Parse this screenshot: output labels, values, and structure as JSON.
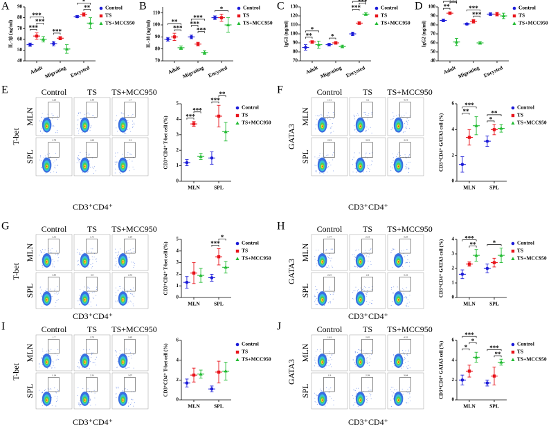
{
  "chart_data": [
    {
      "panel": "A",
      "type": "dot",
      "ylabel": "IL-1β (ng/ml)",
      "categories": [
        "Adult",
        "Migrating",
        "Encysted"
      ],
      "ylim": [
        40,
        90
      ],
      "yticks": [
        40,
        50,
        60,
        70,
        80,
        90
      ],
      "series": [
        {
          "name": "Control",
          "color": "#1c1cd8",
          "marker": "circle",
          "values": [
            55,
            56,
            81
          ],
          "errors": [
            1.5,
            2,
            1
          ]
        },
        {
          "name": "TS",
          "color": "#e8141b",
          "marker": "square",
          "values": [
            63,
            61,
            83
          ],
          "errors": [
            3,
            1.5,
            1.5
          ]
        },
        {
          "name": "TS+MCC950",
          "color": "#22bb33",
          "marker": "triangle",
          "values": [
            60,
            51,
            75
          ],
          "errors": [
            2.5,
            4,
            5
          ]
        }
      ],
      "annotations": [
        {
          "text": "***",
          "category": 0,
          "groups": [
            0,
            1
          ]
        },
        {
          "text": "***",
          "category": 0,
          "groups": [
            1,
            2
          ]
        },
        {
          "text": "***",
          "category": 0,
          "groups": [
            0,
            2
          ]
        },
        {
          "text": "***",
          "category": 1,
          "groups": [
            0,
            1
          ]
        },
        {
          "text": "**",
          "category": 2,
          "groups": [
            1,
            2
          ]
        },
        {
          "text": "*",
          "category": 2,
          "groups": [
            0,
            2
          ]
        }
      ]
    },
    {
      "panel": "B",
      "type": "dot",
      "ylabel": "IL-18 (ng/ml)",
      "categories": [
        "Adult",
        "Migrating",
        "Encysted"
      ],
      "ylim": [
        70,
        115
      ],
      "yticks": [
        70,
        80,
        90,
        100,
        110
      ],
      "series": [
        {
          "name": "Control",
          "color": "#1c1cd8",
          "marker": "circle",
          "values": [
            88,
            90,
            106
          ],
          "errors": [
            1.5,
            1.5,
            1.5
          ]
        },
        {
          "name": "TS",
          "color": "#e8141b",
          "marker": "square",
          "values": [
            90,
            84,
            106
          ],
          "errors": [
            3,
            1.5,
            3
          ]
        },
        {
          "name": "TS+MCC950",
          "color": "#22bb33",
          "marker": "triangle",
          "values": [
            81,
            77,
            100
          ],
          "errors": [
            1.5,
            1.5,
            6
          ]
        }
      ],
      "annotations": [
        {
          "text": "***",
          "category": 0,
          "groups": [
            1,
            2
          ]
        },
        {
          "text": "**",
          "category": 0,
          "groups": [
            0,
            2
          ]
        },
        {
          "text": "***",
          "category": 1,
          "groups": [
            1,
            2
          ]
        },
        {
          "text": "***",
          "category": 1,
          "groups": [
            0,
            1
          ]
        },
        {
          "text": "***",
          "category": 1,
          "groups": [
            0,
            2
          ]
        },
        {
          "text": "*",
          "category": 2,
          "groups": [
            0,
            2
          ]
        }
      ]
    },
    {
      "panel": "C",
      "type": "dot",
      "ylabel": "IgG1 (ng/ml)",
      "categories": [
        "Adult",
        "Migrating",
        "Encysted"
      ],
      "ylim": [
        70,
        130
      ],
      "yticks": [
        70,
        80,
        90,
        100,
        110,
        120,
        130
      ],
      "series": [
        {
          "name": "Control",
          "color": "#1c1cd8",
          "marker": "circle",
          "values": [
            85,
            88,
            100
          ],
          "errors": [
            3,
            1.5,
            2
          ]
        },
        {
          "name": "TS",
          "color": "#e8141b",
          "marker": "square",
          "values": [
            91,
            90,
            112
          ],
          "errors": [
            1.5,
            1.5,
            1.5
          ]
        },
        {
          "name": "TS+MCC950",
          "color": "#22bb33",
          "marker": "triangle",
          "values": [
            88,
            86,
            122
          ],
          "errors": [
            4,
            1.5,
            1.5
          ]
        }
      ],
      "annotations": [
        {
          "text": "**",
          "category": 0,
          "groups": [
            0,
            1
          ]
        },
        {
          "text": "*",
          "category": 0,
          "groups": [
            0,
            2
          ]
        },
        {
          "text": "*",
          "category": 1,
          "groups": [
            0,
            1
          ]
        },
        {
          "text": "***",
          "category": 2,
          "groups": [
            0,
            1
          ]
        },
        {
          "text": "***",
          "category": 2,
          "groups": [
            1,
            2
          ]
        },
        {
          "text": "***",
          "category": 2,
          "groups": [
            0,
            2
          ]
        }
      ]
    },
    {
      "panel": "D",
      "type": "dot",
      "ylabel": "IgG2 (ng/ml)",
      "categories": [
        "Adult",
        "Migrating",
        "Encysted"
      ],
      "ylim": [
        40,
        100
      ],
      "yticks": [
        40,
        50,
        60,
        70,
        80,
        90,
        100
      ],
      "series": [
        {
          "name": "Control",
          "color": "#1c1cd8",
          "marker": "circle",
          "values": [
            85,
            81,
            92
          ],
          "errors": [
            1.5,
            1,
            1.5
          ]
        },
        {
          "name": "TS",
          "color": "#e8141b",
          "marker": "square",
          "values": [
            93,
            84,
            92
          ],
          "errors": [
            1.5,
            2,
            2
          ]
        },
        {
          "name": "TS+MCC950",
          "color": "#22bb33",
          "marker": "triangle",
          "values": [
            61,
            60,
            90
          ],
          "errors": [
            4,
            1.5,
            3
          ]
        }
      ],
      "annotations": [
        {
          "text": "**",
          "category": 0,
          "groups": [
            0,
            1
          ]
        },
        {
          "text": "***",
          "category": 0,
          "groups": [
            1,
            2
          ]
        },
        {
          "text": "***",
          "category": 0,
          "groups": [
            0,
            2
          ]
        },
        {
          "text": "***",
          "category": 1,
          "groups": [
            1,
            2
          ]
        },
        {
          "text": "***",
          "category": 1,
          "groups": [
            0,
            2
          ]
        }
      ]
    },
    {
      "panel": "E",
      "type": "dot",
      "ylabel": "CD3⁺CD4⁺ T-bet cell (%)",
      "categories": [
        "MLN",
        "SPL"
      ],
      "ylim": [
        0,
        5
      ],
      "yticks": [
        0,
        1,
        2,
        3,
        4,
        5
      ],
      "series": [
        {
          "name": "Control",
          "color": "#1c1cd8",
          "marker": "circle",
          "values": [
            1.2,
            1.5
          ],
          "errors": [
            0.2,
            0.4
          ]
        },
        {
          "name": "TS",
          "color": "#e8141b",
          "marker": "square",
          "values": [
            3.7,
            4.2
          ],
          "errors": [
            0.15,
            0.7
          ]
        },
        {
          "name": "TS+MCC950",
          "color": "#22bb33",
          "marker": "triangle",
          "values": [
            1.6,
            3.2
          ],
          "errors": [
            0.2,
            0.6
          ]
        }
      ],
      "annotations": [
        {
          "text": "***",
          "category": 0,
          "groups": [
            0,
            1
          ]
        },
        {
          "text": "***",
          "category": 0,
          "groups": [
            1,
            2
          ]
        },
        {
          "text": "***",
          "category": 1,
          "groups": [
            0,
            1
          ]
        },
        {
          "text": "**",
          "category": 1,
          "groups": [
            1,
            2
          ]
        }
      ],
      "flow": {
        "columns": [
          "Control",
          "TS",
          "TS+MCC950"
        ],
        "rows": [
          "MLN",
          "SPL"
        ],
        "ylabel": "T-bet",
        "xlabel": "CD3⁺CD4⁺",
        "gates": [
          [
            1.29,
            1.49,
            1.7
          ],
          [
            1.78,
            4.64,
            3.3
          ]
        ]
      }
    },
    {
      "panel": "F",
      "type": "dot",
      "ylabel": "CD3⁺CD4⁺ GATA3 cell (%)",
      "categories": [
        "MLN",
        "SPL"
      ],
      "ylim": [
        0,
        6
      ],
      "yticks": [
        0,
        2,
        4,
        6
      ],
      "series": [
        {
          "name": "Control",
          "color": "#1c1cd8",
          "marker": "circle",
          "values": [
            1.3,
            3.1
          ],
          "errors": [
            0.6,
            0.4
          ]
        },
        {
          "name": "TS",
          "color": "#e8141b",
          "marker": "square",
          "values": [
            3.4,
            4.0
          ],
          "errors": [
            0.6,
            0.4
          ]
        },
        {
          "name": "TS+MCC950",
          "color": "#22bb33",
          "marker": "triangle",
          "values": [
            4.3,
            4.1
          ],
          "errors": [
            0.7,
            0.3
          ]
        }
      ],
      "annotations": [
        {
          "text": "**",
          "category": 0,
          "groups": [
            0,
            1
          ]
        },
        {
          "text": "***",
          "category": 0,
          "groups": [
            0,
            2
          ]
        },
        {
          "text": "*",
          "category": 1,
          "groups": [
            0,
            1
          ]
        },
        {
          "text": "**",
          "category": 1,
          "groups": [
            0,
            2
          ]
        }
      ],
      "flow": {
        "columns": [
          "Control",
          "TS",
          "TS+MCC950"
        ],
        "rows": [
          "MLN",
          "SPL"
        ],
        "ylabel": "GATA3",
        "xlabel": "CD3⁺CD4⁺",
        "gates": [
          [
            1.51,
            3.1,
            4.44
          ],
          [
            2.83,
            3.83,
            4.23
          ]
        ]
      }
    },
    {
      "panel": "G",
      "type": "dot",
      "ylabel": "CD3⁺CD4⁺ T-bet cell (%)",
      "categories": [
        "MLN",
        "SPL"
      ],
      "ylim": [
        0,
        5
      ],
      "yticks": [
        0,
        1,
        2,
        3,
        4,
        5
      ],
      "series": [
        {
          "name": "Control",
          "color": "#1c1cd8",
          "marker": "circle",
          "values": [
            1.3,
            1.7
          ],
          "errors": [
            0.5,
            0.3
          ]
        },
        {
          "name": "TS",
          "color": "#e8141b",
          "marker": "square",
          "values": [
            2.1,
            3.5
          ],
          "errors": [
            0.9,
            0.7
          ]
        },
        {
          "name": "TS+MCC950",
          "color": "#22bb33",
          "marker": "triangle",
          "values": [
            1.9,
            2.6
          ],
          "errors": [
            0.6,
            0.5
          ]
        }
      ],
      "annotations": [
        {
          "text": "***",
          "category": 1,
          "groups": [
            0,
            1
          ]
        },
        {
          "text": "*",
          "category": 1,
          "groups": [
            1,
            2
          ]
        }
      ],
      "flow": {
        "columns": [
          "Control",
          "TS",
          "TS+MCC950"
        ],
        "rows": [
          "MLN",
          "SPL"
        ],
        "ylabel": "T-bet",
        "xlabel": "CD3⁺CD4⁺",
        "gates": [
          [
            1.31,
            1.71,
            1.64
          ],
          [
            1.85,
            3.9,
            2.53
          ]
        ]
      }
    },
    {
      "panel": "H",
      "type": "dot",
      "ylabel": "CD3⁺CD4⁺ GATA3 cell (%)",
      "categories": [
        "MLN",
        "SPL"
      ],
      "ylim": [
        0,
        4
      ],
      "yticks": [
        0,
        1,
        2,
        3,
        4
      ],
      "series": [
        {
          "name": "Control",
          "color": "#1c1cd8",
          "marker": "circle",
          "values": [
            1.6,
            2.0
          ],
          "errors": [
            0.3,
            0.3
          ]
        },
        {
          "name": "TS",
          "color": "#e8141b",
          "marker": "square",
          "values": [
            2.3,
            2.4
          ],
          "errors": [
            0.15,
            0.3
          ]
        },
        {
          "name": "TS+MCC950",
          "color": "#22bb33",
          "marker": "triangle",
          "values": [
            2.9,
            2.9
          ],
          "errors": [
            0.4,
            0.5
          ]
        }
      ],
      "annotations": [
        {
          "text": "**",
          "category": 0,
          "groups": [
            1,
            2
          ]
        },
        {
          "text": "***",
          "category": 0,
          "groups": [
            0,
            2
          ]
        },
        {
          "text": "*",
          "category": 1,
          "groups": [
            0,
            2
          ]
        }
      ],
      "flow": {
        "columns": [
          "Control",
          "TS",
          "TS+MCC950"
        ],
        "rows": [
          "MLN",
          "SPL"
        ],
        "ylabel": "GATA3",
        "xlabel": "CD3⁺CD4⁺",
        "gates": [
          [
            1.77,
            2.33,
            3.29
          ],
          [
            2.25,
            2.2,
            3.16
          ]
        ]
      }
    },
    {
      "panel": "I",
      "type": "dot",
      "ylabel": "CD3⁺CD4⁺ T-bet cell (%)",
      "categories": [
        "MLN",
        "SPL"
      ],
      "ylim": [
        0,
        6
      ],
      "yticks": [
        0,
        2,
        4,
        6
      ],
      "series": [
        {
          "name": "Control",
          "color": "#1c1cd8",
          "marker": "circle",
          "values": [
            1.7,
            1.1
          ],
          "errors": [
            0.4,
            0.3
          ]
        },
        {
          "name": "TS",
          "color": "#e8141b",
          "marker": "square",
          "values": [
            2.5,
            2.8
          ],
          "errors": [
            0.7,
            1.1
          ]
        },
        {
          "name": "TS+MCC950",
          "color": "#22bb33",
          "marker": "triangle",
          "values": [
            2.6,
            2.9
          ],
          "errors": [
            0.4,
            0.9
          ]
        }
      ],
      "annotations": [],
      "flow": {
        "columns": [
          "Control",
          "TS",
          "TS+MCC950"
        ],
        "rows": [
          "MLN",
          "SPL"
        ],
        "ylabel": "T-bet",
        "xlabel": "CD3⁺CD4⁺",
        "gates": [
          [
            1.7,
            2.73,
            2.65
          ],
          [
            1.14,
            2.31,
            3.07
          ]
        ]
      }
    },
    {
      "panel": "J",
      "type": "dot",
      "ylabel": "CD3⁺CD4⁺ GATA3 cell (%)",
      "categories": [
        "MLN",
        "SPL"
      ],
      "ylim": [
        0,
        6
      ],
      "yticks": [
        0,
        2,
        4,
        6
      ],
      "series": [
        {
          "name": "Control",
          "color": "#1c1cd8",
          "marker": "circle",
          "values": [
            2.0,
            1.7
          ],
          "errors": [
            0.5,
            0.3
          ]
        },
        {
          "name": "TS",
          "color": "#e8141b",
          "marker": "square",
          "values": [
            2.9,
            2.4
          ],
          "errors": [
            0.6,
            0.9
          ]
        },
        {
          "name": "TS+MCC950",
          "color": "#22bb33",
          "marker": "triangle",
          "values": [
            4.3,
            3.8
          ],
          "errors": [
            0.5,
            0.3
          ]
        }
      ],
      "annotations": [
        {
          "text": "*",
          "category": 0,
          "groups": [
            0,
            1
          ]
        },
        {
          "text": "*",
          "category": 0,
          "groups": [
            1,
            2
          ]
        },
        {
          "text": "***",
          "category": 0,
          "groups": [
            0,
            2
          ]
        },
        {
          "text": "**",
          "category": 1,
          "groups": [
            1,
            2
          ]
        },
        {
          "text": "***",
          "category": 1,
          "groups": [
            0,
            2
          ]
        }
      ],
      "flow": {
        "columns": [
          "Control",
          "TS",
          "TS+MCC950"
        ],
        "rows": [
          "MLN",
          "SPL"
        ],
        "ylabel": "GATA3",
        "xlabel": "CD3⁺CD4⁺",
        "gates": [
          [
            1.61,
            2.85,
            4.32
          ],
          [
            1.9,
            2.39,
            3.84
          ]
        ]
      }
    }
  ]
}
